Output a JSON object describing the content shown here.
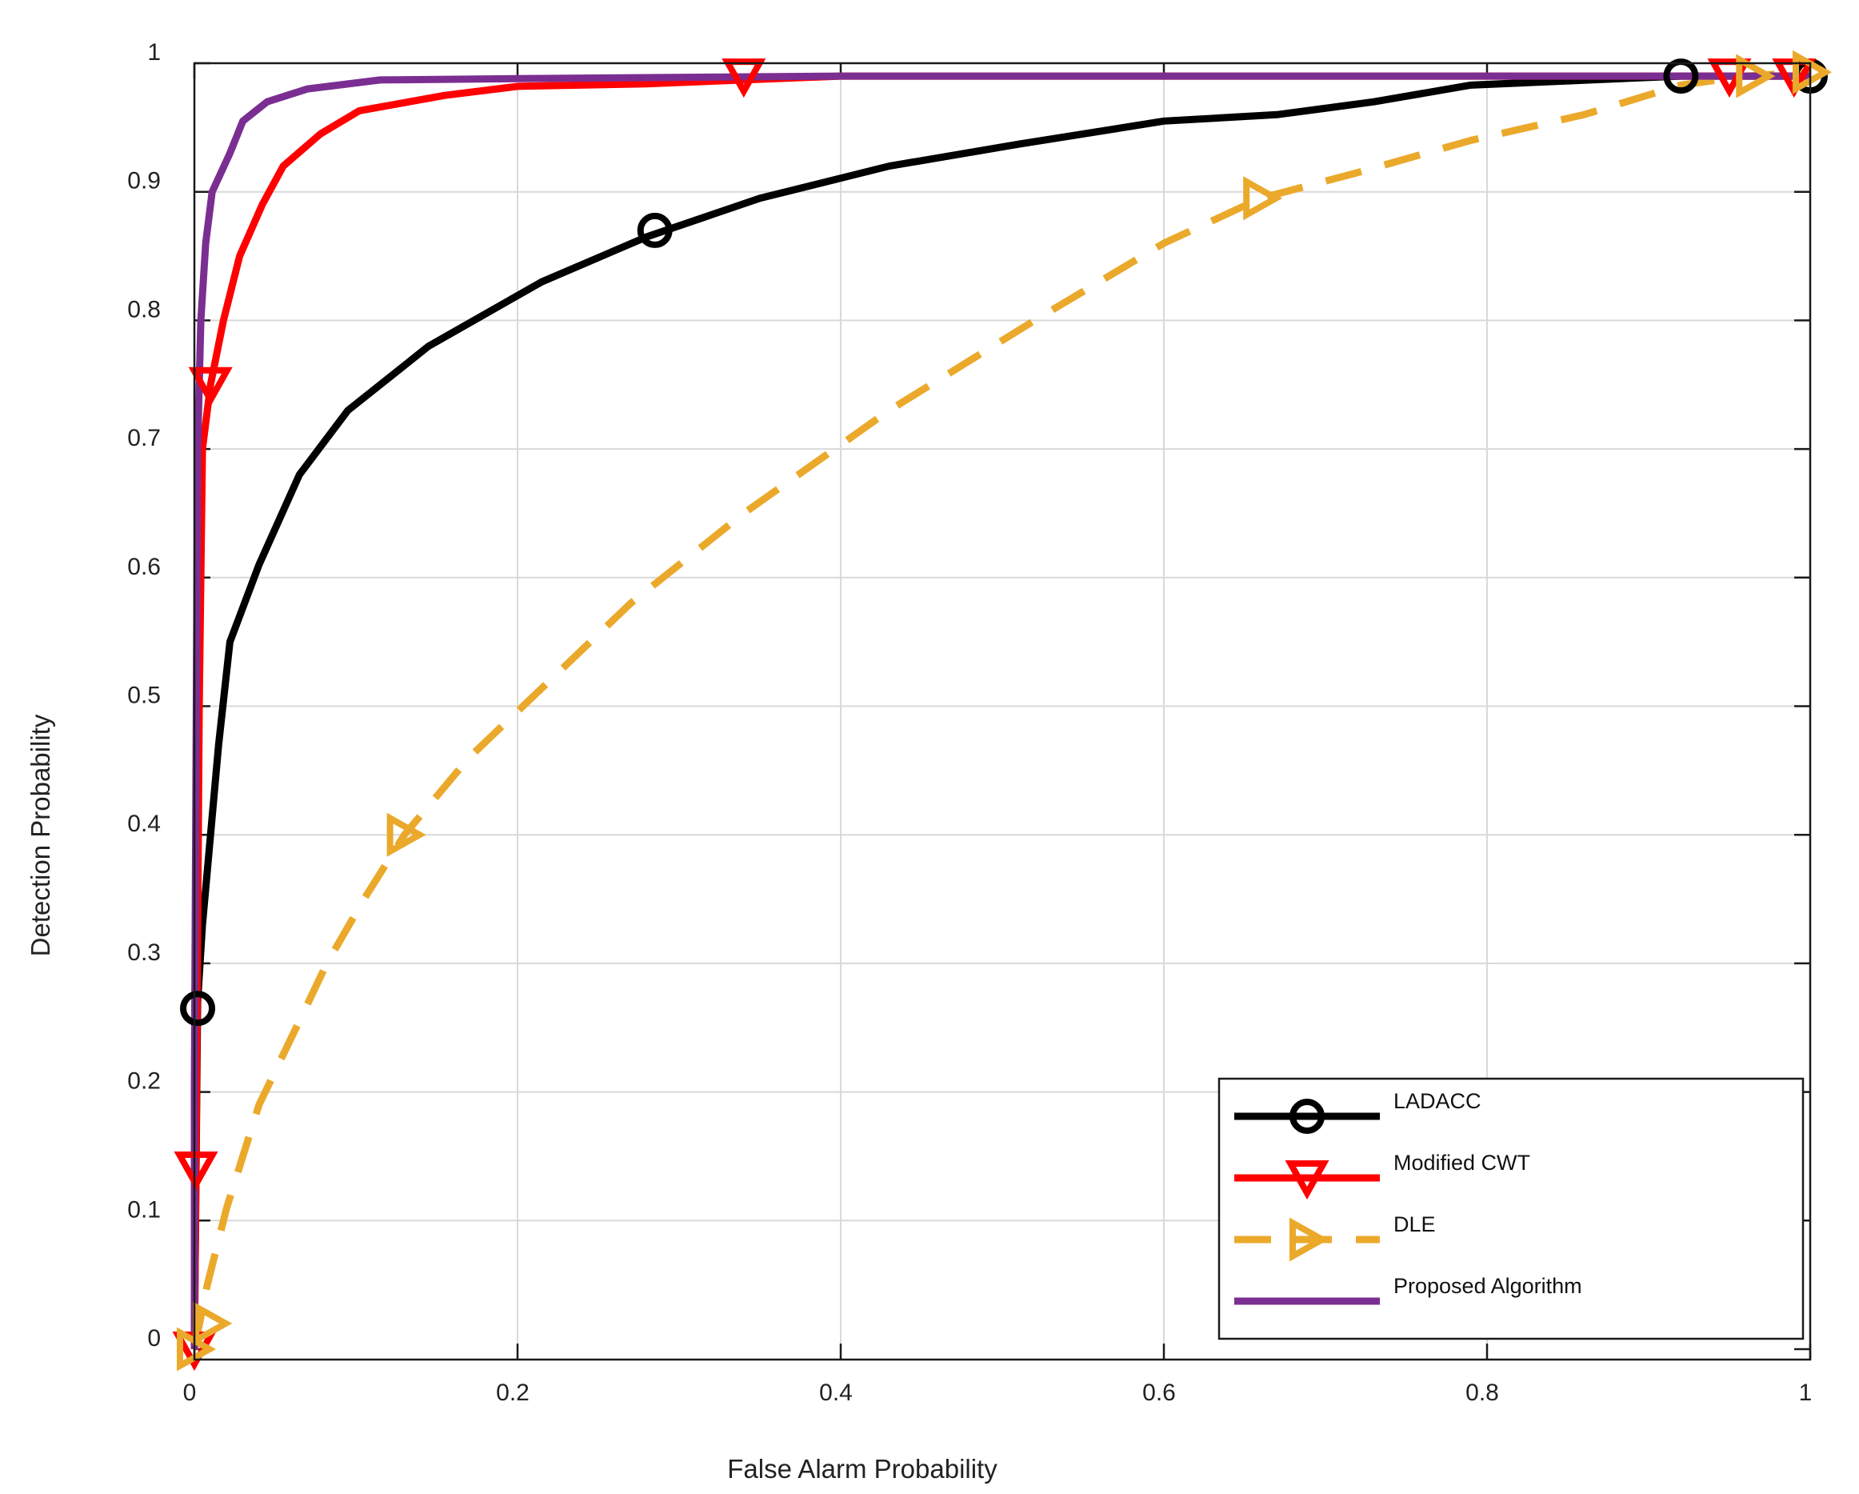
{
  "chart_data": {
    "type": "line",
    "title": "",
    "xlabel": "False Alarm Probability",
    "ylabel": "Detection Probability",
    "xlim": [
      0,
      1
    ],
    "ylim": [
      0,
      1
    ],
    "x_ticks": [
      0,
      0.2,
      0.4,
      0.6,
      0.8,
      1
    ],
    "y_ticks": [
      0,
      0.1,
      0.2,
      0.3,
      0.4,
      0.5,
      0.6,
      0.7,
      0.8,
      0.9,
      1
    ],
    "x_tick_labels": [
      "0",
      "0.2",
      "0.4",
      "0.6",
      "0.8",
      "1"
    ],
    "y_tick_labels": [
      "0",
      "0.1",
      "0.2",
      "0.3",
      "0.4",
      "0.5",
      "0.6",
      "0.7",
      "0.8",
      "0.9",
      "1"
    ],
    "grid": true,
    "legend_position": "bottom-right",
    "series": [
      {
        "name": "LADACC",
        "color": "#000000",
        "dash": "solid",
        "marker": "circle",
        "points": [
          [
            0,
            0
          ],
          [
            0.002,
            0.27
          ],
          [
            0.005,
            0.33
          ],
          [
            0.01,
            0.4
          ],
          [
            0.015,
            0.47
          ],
          [
            0.022,
            0.55
          ],
          [
            0.04,
            0.61
          ],
          [
            0.065,
            0.68
          ],
          [
            0.095,
            0.73
          ],
          [
            0.145,
            0.78
          ],
          [
            0.215,
            0.83
          ],
          [
            0.28,
            0.865
          ],
          [
            0.35,
            0.895
          ],
          [
            0.43,
            0.92
          ],
          [
            0.51,
            0.937
          ],
          [
            0.6,
            0.955
          ],
          [
            0.67,
            0.96
          ],
          [
            0.73,
            0.97
          ],
          [
            0.79,
            0.983
          ],
          [
            0.92,
            0.99
          ],
          [
            1,
            0.99
          ]
        ],
        "marker_points": [
          [
            0.002,
            0.265
          ],
          [
            0.285,
            0.87
          ],
          [
            0.92,
            0.99
          ],
          [
            1,
            0.99
          ]
        ]
      },
      {
        "name": "Modified CWT",
        "color": "#ff0000",
        "dash": "solid",
        "marker": "triangle-down",
        "points": [
          [
            0,
            0
          ],
          [
            0.001,
            0.14
          ],
          [
            0.003,
            0.5
          ],
          [
            0.005,
            0.7
          ],
          [
            0.01,
            0.75
          ],
          [
            0.018,
            0.8
          ],
          [
            0.028,
            0.85
          ],
          [
            0.042,
            0.89
          ],
          [
            0.055,
            0.92
          ],
          [
            0.078,
            0.945
          ],
          [
            0.102,
            0.963
          ],
          [
            0.155,
            0.975
          ],
          [
            0.2,
            0.982
          ],
          [
            0.28,
            0.984
          ],
          [
            0.34,
            0.987
          ],
          [
            0.4,
            0.99
          ],
          [
            0.6,
            0.99
          ],
          [
            0.8,
            0.99
          ],
          [
            0.95,
            0.99
          ],
          [
            1,
            0.99
          ]
        ],
        "marker_points": [
          [
            0,
            0
          ],
          [
            0.001,
            0.14
          ],
          [
            0.01,
            0.75
          ],
          [
            0.34,
            0.99
          ],
          [
            0.95,
            0.99
          ],
          [
            0.99,
            0.99
          ]
        ]
      },
      {
        "name": "DLE",
        "color": "#eba92b",
        "dash": "dashed",
        "marker": "triangle-right",
        "points": [
          [
            0,
            0
          ],
          [
            0.008,
            0.05
          ],
          [
            0.02,
            0.11
          ],
          [
            0.04,
            0.19
          ],
          [
            0.063,
            0.25
          ],
          [
            0.082,
            0.3
          ],
          [
            0.105,
            0.35
          ],
          [
            0.13,
            0.4
          ],
          [
            0.17,
            0.46
          ],
          [
            0.22,
            0.52
          ],
          [
            0.27,
            0.58
          ],
          [
            0.34,
            0.65
          ],
          [
            0.43,
            0.73
          ],
          [
            0.52,
            0.8
          ],
          [
            0.6,
            0.86
          ],
          [
            0.66,
            0.895
          ],
          [
            0.72,
            0.915
          ],
          [
            0.79,
            0.94
          ],
          [
            0.86,
            0.96
          ],
          [
            0.92,
            0.983
          ],
          [
            0.96,
            0.99
          ],
          [
            1,
            0.993
          ]
        ],
        "marker_points": [
          [
            0.0,
            0.0
          ],
          [
            0.01,
            0.02
          ],
          [
            0.13,
            0.4
          ],
          [
            0.66,
            0.895
          ],
          [
            0.965,
            0.99
          ],
          [
            1,
            0.993
          ]
        ]
      },
      {
        "name": "Proposed Algorithm",
        "color": "#7b2e91",
        "dash": "solid",
        "marker": "none",
        "points": [
          [
            0,
            0
          ],
          [
            0.0,
            0.2
          ],
          [
            0.001,
            0.45
          ],
          [
            0.002,
            0.7
          ],
          [
            0.004,
            0.8
          ],
          [
            0.007,
            0.86
          ],
          [
            0.011,
            0.9
          ],
          [
            0.022,
            0.93
          ],
          [
            0.03,
            0.955
          ],
          [
            0.045,
            0.97
          ],
          [
            0.07,
            0.98
          ],
          [
            0.115,
            0.987
          ],
          [
            0.2,
            0.988
          ],
          [
            0.4,
            0.99
          ],
          [
            0.6,
            0.99
          ],
          [
            0.8,
            0.99
          ],
          [
            1,
            0.99
          ]
        ],
        "marker_points": []
      }
    ]
  }
}
